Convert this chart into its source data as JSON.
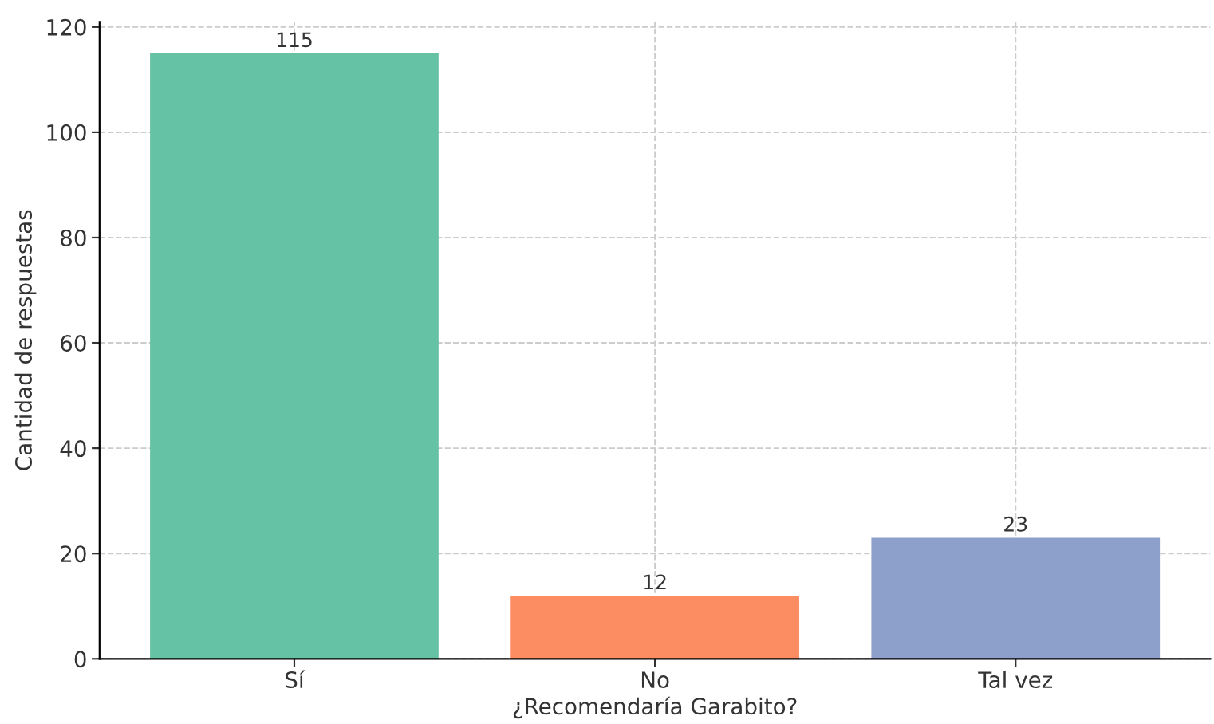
{
  "chart_data": {
    "type": "bar",
    "xlabel": "¿Recomendaría Garabito?",
    "ylabel": "Cantidad de respuestas",
    "categories": [
      "Sí",
      "No",
      "Tal vez"
    ],
    "values": [
      115,
      12,
      23
    ],
    "colors": [
      "#66c2a5",
      "#fc8d62",
      "#8da0cb"
    ],
    "ylim": [
      0,
      121
    ],
    "yticks": [
      0,
      20,
      40,
      60,
      80,
      100,
      120
    ],
    "grid": true,
    "data_labels": true
  }
}
